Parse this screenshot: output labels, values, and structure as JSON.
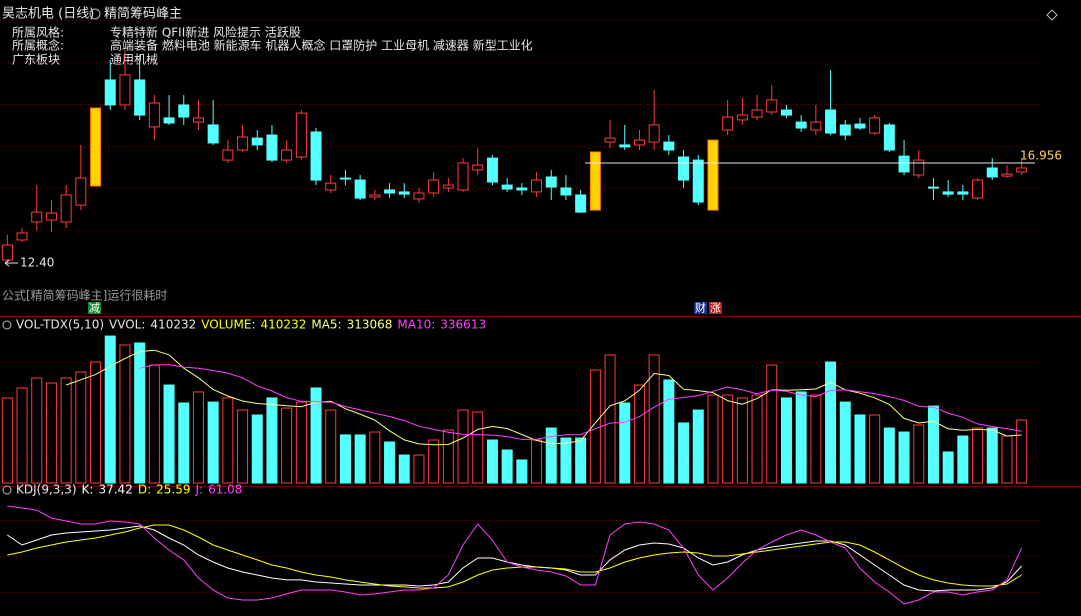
{
  "header": {
    "stock": "昊志机电 (日线)",
    "indicator": "精简筹码峰主"
  },
  "info": [
    {
      "label": "所属风格:",
      "value": "专精特新 QFII新进 风险提示 活跃股"
    },
    {
      "label": "所属概念:",
      "value": "高端装备 燃料电池 新能源车 机器人概念 口罩防护 工业母机 减速器 新型工业化"
    },
    {
      "label": "广东板块",
      "value": "通用机械"
    }
  ],
  "notice": "公式[精简筹码峰主]运行很耗时",
  "events": [
    "减",
    "财",
    "涨"
  ],
  "chart_data": [
    {
      "type": "candlestick",
      "open": [
        12.54,
        13.45,
        14.27,
        14.36,
        14.27,
        15.04,
        15.91,
        20.74,
        19.6,
        20.74,
        18.6,
        19.01,
        19.6,
        18.82,
        18.69,
        17.09,
        17.55,
        18.09,
        18.23,
        17.09,
        17.23,
        18.37,
        15.73,
        16.27,
        16.18,
        15.41,
        15.73,
        15.64,
        15.32,
        15.59,
        15.82,
        15.73,
        16.64,
        17.18,
        15.95,
        15.82,
        15.64,
        16.32,
        15.82,
        15.5,
        14.81,
        17.91,
        17.78,
        17.78,
        17.91,
        17.91,
        17.23,
        17.09,
        14.81,
        18.46,
        18.92,
        19.05,
        19.28,
        19.37,
        18.82,
        18.46,
        19.37,
        18.69,
        18.73,
        18.32,
        18.69,
        17.27,
        16.41,
        15.86,
        15.64,
        15.64,
        15.36,
        16.73,
        16.36,
        16.55
      ],
      "high": [
        13.68,
        13.99,
        15.95,
        15.27,
        15.95,
        17.78,
        19.46,
        21.65,
        22.1,
        21.88,
        20.05,
        20.05,
        20.05,
        19.83,
        19.83,
        18.0,
        18.69,
        18.46,
        18.69,
        18.0,
        19.37,
        18.55,
        16.41,
        16.64,
        16.41,
        15.73,
        16.04,
        16.04,
        15.82,
        16.55,
        16.27,
        17.18,
        17.64,
        17.32,
        16.27,
        16.04,
        16.55,
        16.64,
        16.41,
        15.73,
        17.46,
        18.92,
        18.69,
        18.46,
        20.28,
        18.23,
        17.55,
        17.32,
        18.0,
        19.83,
        19.92,
        20.05,
        20.51,
        19.6,
        19.14,
        19.6,
        21.19,
        18.92,
        19.01,
        19.14,
        18.78,
        18.0,
        17.55,
        16.27,
        16.18,
        15.95,
        16.27,
        17.18,
        16.86,
        17.18
      ],
      "low": [
        12.4,
        13.36,
        13.9,
        13.81,
        13.99,
        14.81,
        15.91,
        19.37,
        19.37,
        18.92,
        18.0,
        18.69,
        18.69,
        18.46,
        17.78,
        16.96,
        17.46,
        17.55,
        17.0,
        16.96,
        17.09,
        15.95,
        15.59,
        15.95,
        15.27,
        15.27,
        15.36,
        15.36,
        15.13,
        15.41,
        15.64,
        15.64,
        16.41,
        15.95,
        15.64,
        15.5,
        15.41,
        15.27,
        15.27,
        14.68,
        14.81,
        17.64,
        17.55,
        17.55,
        17.55,
        17.32,
        15.82,
        15.04,
        14.81,
        18.23,
        18.69,
        18.92,
        19.14,
        19.01,
        18.37,
        18.23,
        18.23,
        18.0,
        18.46,
        18.23,
        17.46,
        16.41,
        16.27,
        15.27,
        15.41,
        15.27,
        15.27,
        16.18,
        16.27,
        16.41
      ],
      "close": [
        13.22,
        13.77,
        14.72,
        14.68,
        15.5,
        16.27,
        19.46,
        19.6,
        20.97,
        19.14,
        19.69,
        18.78,
        19.05,
        19.01,
        17.87,
        17.55,
        18.14,
        17.78,
        17.09,
        17.55,
        19.23,
        16.18,
        16.04,
        16.23,
        15.36,
        15.5,
        15.59,
        15.54,
        15.59,
        16.18,
        15.95,
        16.96,
        16.86,
        16.09,
        15.77,
        15.73,
        16.18,
        15.86,
        15.5,
        14.72,
        17.46,
        18.09,
        17.69,
        18.0,
        18.69,
        17.55,
        16.18,
        15.18,
        18.0,
        19.05,
        19.14,
        19.37,
        19.83,
        19.14,
        18.55,
        18.82,
        18.32,
        18.23,
        18.55,
        19.01,
        17.55,
        16.55,
        17.09,
        15.82,
        15.54,
        15.54,
        16.18,
        16.32,
        16.45,
        16.73
      ],
      "highlighted": [
        false,
        false,
        false,
        false,
        false,
        false,
        true,
        false,
        false,
        false,
        false,
        false,
        false,
        false,
        false,
        false,
        false,
        false,
        false,
        false,
        false,
        false,
        false,
        false,
        false,
        false,
        false,
        false,
        false,
        false,
        false,
        false,
        false,
        false,
        false,
        false,
        false,
        false,
        false,
        false,
        true,
        false,
        false,
        false,
        false,
        false,
        false,
        false,
        true,
        false,
        false,
        false,
        false,
        false,
        false,
        false,
        false,
        false,
        false,
        false,
        false,
        false,
        false,
        false,
        false,
        false,
        false,
        false,
        false,
        false
      ],
      "up_color": "#ff3c3c",
      "down_color": "#54ffff",
      "highlight_color": "#ffd400",
      "ylim": [
        11.4,
        23.47
      ],
      "price_line": 16.956,
      "low_label": {
        "value": 12.4,
        "label": "12.40"
      }
    },
    {
      "type": "bar",
      "title": "VOL-TDX(5,10)",
      "extra": {
        "label": "VVOL:",
        "value": 410232
      },
      "series": [
        {
          "name": "VOLUME:",
          "color": "#ffff00",
          "values": [
            554000,
            619000,
            684000,
            651000,
            684000,
            723000,
            788000,
            957000,
            899000,
            912000,
            768000,
            638000,
            521000,
            593000,
            527000,
            554000,
            475000,
            443000,
            554000,
            488000,
            527000,
            619000,
            475000,
            313000,
            313000,
            332000,
            267000,
            182000,
            182000,
            280000,
            345000,
            475000,
            462000,
            280000,
            215000,
            150000,
            280000,
            358000,
            293000,
            293000,
            736000,
            834000,
            521000,
            638000,
            834000,
            671000,
            391000,
            475000,
            573000,
            573000,
            554000,
            573000,
            768000,
            554000,
            593000,
            573000,
            788000,
            527000,
            443000,
            443000,
            358000,
            332000,
            378000,
            501000,
            202000,
            306000,
            358000,
            358000,
            306000,
            410232
          ]
        },
        {
          "name": "MA5:",
          "color": "#ffff80",
          "type": "line",
          "values": [
            null,
            null,
            null,
            null,
            638000,
            672000,
            706000,
            761000,
            810000,
            856000,
            865000,
            835000,
            748000,
            686000,
            609000,
            567000,
            534000,
            518000,
            511000,
            503000,
            497000,
            526000,
            533000,
            484000,
            449000,
            410000,
            340000,
            281000,
            255000,
            249000,
            251000,
            293000,
            349000,
            368000,
            355000,
            316000,
            277000,
            257000,
            259000,
            275000,
            392000,
            503000,
            535000,
            604000,
            713000,
            700000,
            611000,
            602000,
            589000,
            537000,
            513000,
            550000,
            608000,
            604000,
            608000,
            612000,
            655000,
            607000,
            585000,
            555000,
            512000,
            421000,
            391000,
            402000,
            354000,
            344000,
            349000,
            345000,
            306000,
            313068
          ]
        },
        {
          "name": "MA10:",
          "color": "#ff40ff",
          "type": "line",
          "values": [
            null,
            null,
            null,
            null,
            null,
            null,
            null,
            null,
            null,
            747000,
            769000,
            771000,
            755000,
            748000,
            733000,
            716000,
            685000,
            633000,
            599000,
            556000,
            532000,
            530000,
            526000,
            498000,
            476000,
            454000,
            433000,
            407000,
            370000,
            349000,
            331000,
            317000,
            315000,
            312000,
            302000,
            284000,
            285000,
            303000,
            314000,
            315000,
            354000,
            390000,
            396000,
            432000,
            494000,
            546000,
            557000,
            569000,
            597000,
            625000,
            607000,
            581000,
            605000,
            597000,
            573000,
            563000,
            603000,
            608000,
            595000,
            582000,
            562000,
            538000,
            499000,
            494000,
            455000,
            428000,
            385000,
            368000,
            354000,
            336613
          ]
        }
      ],
      "ylim": [
        0,
        964000
      ]
    },
    {
      "type": "line",
      "title": "KDJ(9,3,3)",
      "series": [
        {
          "name": "K:",
          "color": "#ffffff",
          "values": [
            78.2,
            65.0,
            71.6,
            78.2,
            80.8,
            82.1,
            83.4,
            84.8,
            87.4,
            90.0,
            84.8,
            74.2,
            65.0,
            52.0,
            42.7,
            34.8,
            29.6,
            25.6,
            21.7,
            19.1,
            19.1,
            16.4,
            15.1,
            13.8,
            12.5,
            12.5,
            12.5,
            12.5,
            11.2,
            12.5,
            16.4,
            34.8,
            48.0,
            48.0,
            42.7,
            38.8,
            36.1,
            34.8,
            32.2,
            25.6,
            25.6,
            45.4,
            58.5,
            65.0,
            67.7,
            66.4,
            61.1,
            48.0,
            38.8,
            42.7,
            52.0,
            58.5,
            62.4,
            65.0,
            67.7,
            70.3,
            70.3,
            65.0,
            52.0,
            38.8,
            25.6,
            12.5,
            5.9,
            4.6,
            5.9,
            5.9,
            5.9,
            8.5,
            16.4,
            37.42
          ]
        },
        {
          "name": "D:",
          "color": "#ffff00",
          "values": [
            51.9,
            55.8,
            61.1,
            65.0,
            69.0,
            71.6,
            74.2,
            78.2,
            82.1,
            87.4,
            91.3,
            91.3,
            84.8,
            75.6,
            65.0,
            58.5,
            51.9,
            45.4,
            38.8,
            34.8,
            29.6,
            25.6,
            23.0,
            19.1,
            16.4,
            13.8,
            11.2,
            9.9,
            8.5,
            8.5,
            9.9,
            16.4,
            25.6,
            32.2,
            34.8,
            36.1,
            36.1,
            34.8,
            33.5,
            29.6,
            29.6,
            34.8,
            42.7,
            48.0,
            51.9,
            54.5,
            55.8,
            54.5,
            50.6,
            50.6,
            53.2,
            55.8,
            58.5,
            61.1,
            63.7,
            66.4,
            69.0,
            69.0,
            65.0,
            55.8,
            45.4,
            34.8,
            25.6,
            19.1,
            15.1,
            12.5,
            11.2,
            11.2,
            13.8,
            25.59
          ]
        },
        {
          "name": "J:",
          "color": "#ff40ff",
          "values": [
            116.3,
            113.7,
            110.9,
            100.5,
            96.6,
            92.6,
            92.6,
            96.6,
            95.3,
            92.6,
            74.2,
            58.5,
            45.4,
            21.7,
            5.9,
            -4.6,
            -7.2,
            -7.2,
            -4.6,
            0.7,
            5.9,
            5.9,
            5.9,
            3.3,
            -0.7,
            0.7,
            3.3,
            5.9,
            5.9,
            8.5,
            25.6,
            65.0,
            92.6,
            71.6,
            42.7,
            36.1,
            32.2,
            29.6,
            24.3,
            12.5,
            12.5,
            78.2,
            92.6,
            95.3,
            92.6,
            84.8,
            61.1,
            25.6,
            5.9,
            21.7,
            41.4,
            58.5,
            69.0,
            78.2,
            84.8,
            78.2,
            69.0,
            61.1,
            34.8,
            16.4,
            3.3,
            -12.5,
            -7.2,
            3.3,
            3.3,
            -0.7,
            3.3,
            5.9,
            19.1,
            61.08
          ]
        }
      ],
      "ylim": [
        -28.3,
        124.2
      ]
    }
  ]
}
